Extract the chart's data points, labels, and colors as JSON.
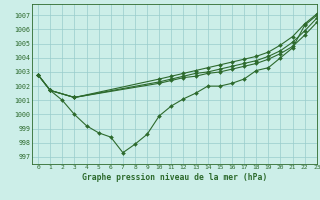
{
  "background_color": "#cceee8",
  "grid_color": "#99cccc",
  "line_color": "#2d6a2d",
  "title": "Graphe pression niveau de la mer (hPa)",
  "xlim": [
    -0.5,
    23
  ],
  "ylim": [
    996.5,
    1007.8
  ],
  "yticks": [
    997,
    998,
    999,
    1000,
    1001,
    1002,
    1003,
    1004,
    1005,
    1006,
    1007
  ],
  "xticks": [
    0,
    1,
    2,
    3,
    4,
    5,
    6,
    7,
    8,
    9,
    10,
    11,
    12,
    13,
    14,
    15,
    16,
    17,
    18,
    19,
    20,
    21,
    22,
    23
  ],
  "series": [
    {
      "x": [
        0,
        1,
        2,
        3,
        4,
        5,
        6,
        7,
        8,
        9,
        10,
        11,
        12,
        13,
        14,
        15,
        16,
        17,
        18,
        19,
        20,
        21,
        22,
        23
      ],
      "y": [
        1002.8,
        1001.7,
        1001.0,
        1000.0,
        999.2,
        998.7,
        998.4,
        997.3,
        997.9,
        998.6,
        999.9,
        1000.6,
        1001.1,
        1001.5,
        1002.0,
        1002.0,
        1002.2,
        1002.5,
        1003.1,
        1003.3,
        1004.0,
        1004.7,
        1006.3,
        1007.0
      ]
    },
    {
      "x": [
        0,
        1,
        3,
        10,
        11,
        12,
        13,
        14,
        15,
        16,
        17,
        18,
        19,
        20,
        21,
        22,
        23
      ],
      "y": [
        1002.8,
        1001.7,
        1001.2,
        1002.5,
        1002.7,
        1002.9,
        1003.1,
        1003.3,
        1003.5,
        1003.7,
        1003.9,
        1004.1,
        1004.4,
        1004.9,
        1005.5,
        1006.4,
        1007.1
      ]
    },
    {
      "x": [
        0,
        1,
        3,
        10,
        11,
        12,
        13,
        14,
        15,
        16,
        17,
        18,
        19,
        20,
        21,
        22,
        23
      ],
      "y": [
        1002.8,
        1001.7,
        1001.2,
        1002.3,
        1002.5,
        1002.7,
        1002.9,
        1003.0,
        1003.2,
        1003.4,
        1003.6,
        1003.8,
        1004.1,
        1004.5,
        1005.1,
        1005.9,
        1006.8
      ]
    },
    {
      "x": [
        0,
        1,
        3,
        10,
        11,
        12,
        13,
        14,
        15,
        16,
        17,
        18,
        19,
        20,
        21,
        22,
        23
      ],
      "y": [
        1002.8,
        1001.7,
        1001.2,
        1002.2,
        1002.4,
        1002.6,
        1002.7,
        1002.9,
        1003.0,
        1003.2,
        1003.4,
        1003.6,
        1003.9,
        1004.3,
        1004.8,
        1005.6,
        1006.5
      ]
    }
  ]
}
